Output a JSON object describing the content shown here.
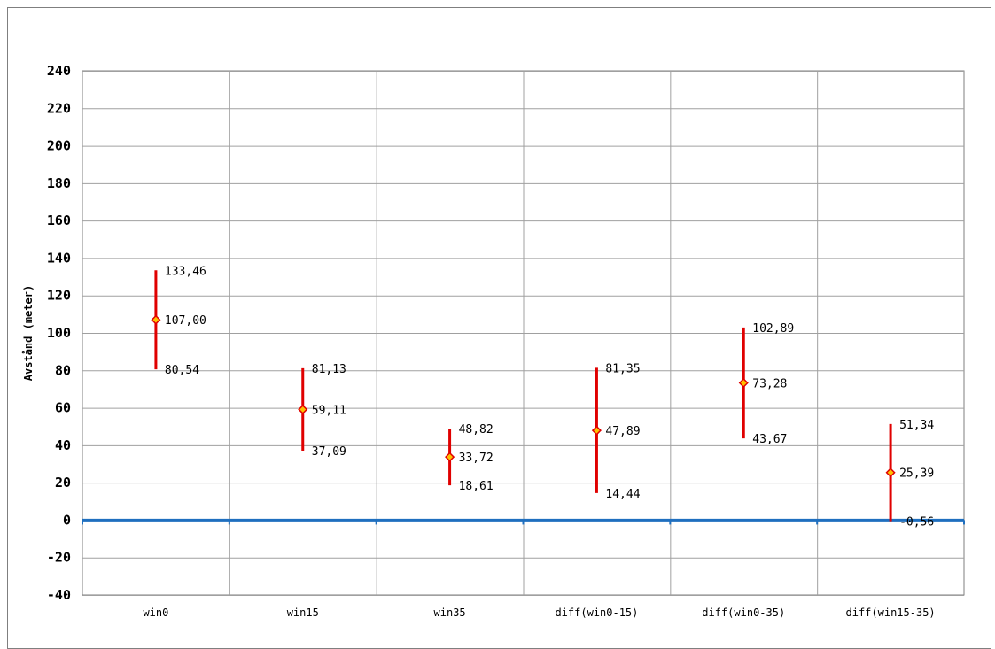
{
  "chart_data": {
    "type": "errorbar",
    "title": "",
    "xlabel": "",
    "ylabel": "Avstånd (meter)",
    "ylim": [
      -40,
      240
    ],
    "yticks": [
      "240",
      "220",
      "200",
      "180",
      "160",
      "140",
      "120",
      "100",
      "80",
      "60",
      "40",
      "20",
      "0",
      "-20",
      "-40"
    ],
    "ytick_values": [
      240,
      220,
      200,
      180,
      160,
      140,
      120,
      100,
      80,
      60,
      40,
      20,
      0,
      -20,
      -40
    ],
    "grid": true,
    "categories": [
      "win0",
      "win15",
      "win35",
      "diff(win0-15)",
      "diff(win0-35)",
      "diff(win15-35)"
    ],
    "series": [
      {
        "mean": [
          107.0,
          59.11,
          33.72,
          47.89,
          73.28,
          25.39
        ],
        "upper": [
          133.46,
          81.13,
          48.82,
          81.35,
          102.89,
          51.34
        ],
        "lower": [
          80.54,
          37.09,
          18.61,
          14.44,
          43.67,
          -0.56
        ],
        "mean_labels": [
          "107,00",
          "59,11",
          "33,72",
          "47,89",
          "73,28",
          "25,39"
        ],
        "upper_labels": [
          "133,46",
          "81,13",
          "48,82",
          "81,35",
          "102,89",
          "51,34"
        ],
        "lower_labels": [
          "80,54",
          "37,09",
          "18,61",
          "14,44",
          "43,67",
          "-0,56"
        ]
      }
    ],
    "colors": {
      "errorbar": "#e00000",
      "marker_fill": "#ffc000",
      "marker_stroke": "#e00000",
      "zero_line": "#1f6fbf",
      "grid": "#a0a0a0"
    }
  }
}
